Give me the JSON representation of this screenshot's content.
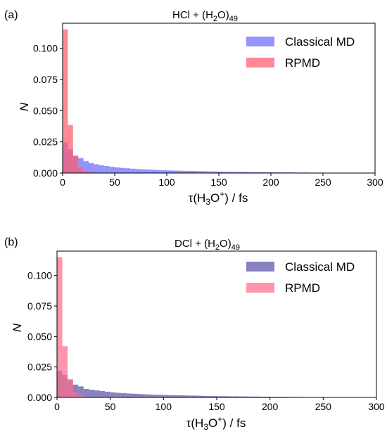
{
  "figure": {
    "panels": [
      {
        "label": "(a)",
        "title_main": "HCl + (H",
        "title_sub1": "2",
        "title_mid": "O)",
        "title_sub2": "49",
        "xlabel_prefix": "τ(H",
        "xlabel_sub": "3",
        "xlabel_mid": "O",
        "xlabel_sup": "+",
        "xlabel_suffix": ") / fs",
        "ylabel": "N"
      },
      {
        "label": "(b)",
        "title_main": "DCl + (H",
        "title_sub1": "2",
        "title_mid": "O)",
        "title_sub2": "49",
        "xlabel_prefix": "τ(H",
        "xlabel_sub": "3",
        "xlabel_mid": "O",
        "xlabel_sup": "+",
        "xlabel_suffix": ") / fs",
        "ylabel": "N"
      }
    ]
  },
  "chart_data": [
    {
      "type": "bar",
      "title": "HCl + (H2O)49",
      "xlabel": "τ(H3O+) / fs",
      "ylabel": "N",
      "xlim": [
        0,
        300
      ],
      "ylim": [
        0,
        0.12
      ],
      "xticks": [
        0,
        50,
        100,
        150,
        200,
        250,
        300
      ],
      "yticks": [
        "0.000",
        "0.025",
        "0.050",
        "0.075",
        "0.100"
      ],
      "legend_position": "top-right",
      "bin_width": 5,
      "series": [
        {
          "name": "Classical MD",
          "color": "#6b6bff",
          "values": [
            0.0245,
            0.019,
            0.014,
            0.012,
            0.0095,
            0.008,
            0.007,
            0.0062,
            0.0056,
            0.005,
            0.0045,
            0.0041,
            0.0038,
            0.0035,
            0.0032,
            0.003,
            0.0028,
            0.0026,
            0.0024,
            0.0022,
            0.0021,
            0.002,
            0.0019,
            0.0018,
            0.0017,
            0.0016,
            0.0015,
            0.0014,
            0.0013,
            0.0012,
            0.0011,
            0.001,
            0.001,
            0.0009,
            0.0009,
            0.0008,
            0.0008,
            0.0007,
            0.0007,
            0.0006,
            0.0006,
            0.0005,
            0.0005,
            0.0005,
            0.0004,
            0.0004,
            0.0004,
            0.0003,
            0.0003,
            0.0003
          ]
        },
        {
          "name": "RPMD",
          "color": "#ff5c6b",
          "values": [
            0.115,
            0.0385,
            0.0135,
            0.0045,
            0.0015,
            0.0006,
            0.0002
          ]
        }
      ]
    },
    {
      "type": "bar",
      "title": "DCl + (H2O)49",
      "xlabel": "τ(H3O+) / fs",
      "ylabel": "N",
      "xlim": [
        0,
        300
      ],
      "ylim": [
        0,
        0.12
      ],
      "xticks": [
        0,
        50,
        100,
        150,
        200,
        250,
        300
      ],
      "yticks": [
        "0.000",
        "0.025",
        "0.050",
        "0.075",
        "0.100"
      ],
      "legend_position": "top-right",
      "bin_width": 5,
      "series": [
        {
          "name": "Classical MD",
          "color": "#5a52a6",
          "values": [
            0.022,
            0.0185,
            0.014,
            0.0105,
            0.009,
            0.007,
            0.0063,
            0.0058,
            0.0052,
            0.0047,
            0.0042,
            0.0038,
            0.0035,
            0.0032,
            0.003,
            0.0028,
            0.0026,
            0.0024,
            0.0022,
            0.0021,
            0.002,
            0.0019,
            0.0018,
            0.0017,
            0.0016,
            0.0015,
            0.0014,
            0.0013,
            0.0012,
            0.0011,
            0.001,
            0.001,
            0.0009,
            0.0009,
            0.0008,
            0.0008,
            0.0007,
            0.0007,
            0.0006,
            0.0006,
            0.0005,
            0.0005,
            0.0005,
            0.0004,
            0.0004,
            0.0004,
            0.0003,
            0.0003,
            0.0003,
            0.0003,
            0.0002
          ]
        },
        {
          "name": "RPMD",
          "color": "#ff6b8a",
          "values": [
            0.115,
            0.042,
            0.015,
            0.0045,
            0.0018,
            0.0005
          ]
        }
      ]
    }
  ]
}
